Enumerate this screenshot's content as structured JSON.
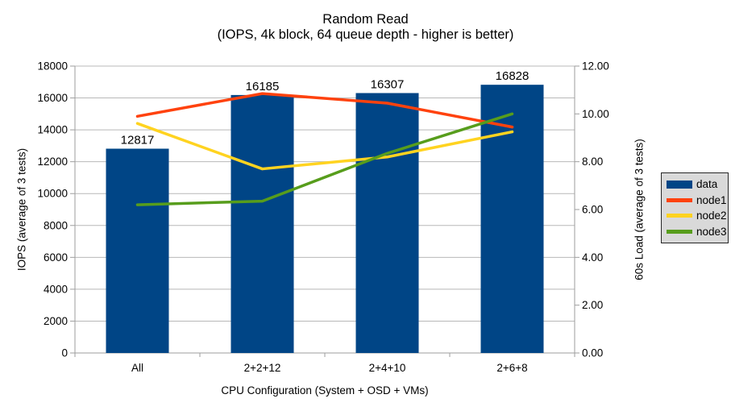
{
  "chart_data": {
    "type": "bar",
    "subtype": "combo-bar-line",
    "title": "Random Read",
    "subtitle": "(IOPS, 4k block, 64 queue depth - higher is better)",
    "xlabel": "CPU Configuration (System + OSD + VMs)",
    "ylabel_left": "IOPS (average of 3 tests)",
    "ylabel_right": "60s Load (average of 3 tests)",
    "categories": [
      "All",
      "2+2+12",
      "2+4+10",
      "2+6+8"
    ],
    "series": [
      {
        "name": "data",
        "type": "bar",
        "axis": "left",
        "color": "#004586",
        "values": [
          12817,
          16185,
          16307,
          16828
        ],
        "data_labels": true
      },
      {
        "name": "node1",
        "type": "line",
        "axis": "right",
        "color": "#ff420e",
        "values": [
          9.9,
          10.85,
          10.45,
          9.45
        ]
      },
      {
        "name": "node2",
        "type": "line",
        "axis": "right",
        "color": "#ffd320",
        "values": [
          9.6,
          7.7,
          8.2,
          9.25
        ]
      },
      {
        "name": "node3",
        "type": "line",
        "axis": "right",
        "color": "#579d1c",
        "values": [
          6.2,
          6.35,
          8.35,
          10.0
        ]
      }
    ],
    "left_axis": {
      "min": 0,
      "max": 18000,
      "step": 2000,
      "tick_labels": [
        "0",
        "2000",
        "4000",
        "6000",
        "8000",
        "10000",
        "12000",
        "14000",
        "16000",
        "18000"
      ]
    },
    "right_axis": {
      "min": 0,
      "max": 12,
      "step": 2,
      "tick_labels": [
        "0.00",
        "2.00",
        "4.00",
        "6.00",
        "8.00",
        "10.00",
        "12.00"
      ]
    },
    "legend": {
      "position": "right",
      "entries": [
        "data",
        "node1",
        "node2",
        "node3"
      ]
    },
    "grid": {
      "horizontal": true,
      "vertical": false
    },
    "colors": {
      "background": "#ffffff",
      "gridline": "#b8b8b8",
      "axis": "#9e9e9e",
      "text": "#000000",
      "legend_bg": "#d9d9d9",
      "legend_border": "#262626"
    }
  }
}
